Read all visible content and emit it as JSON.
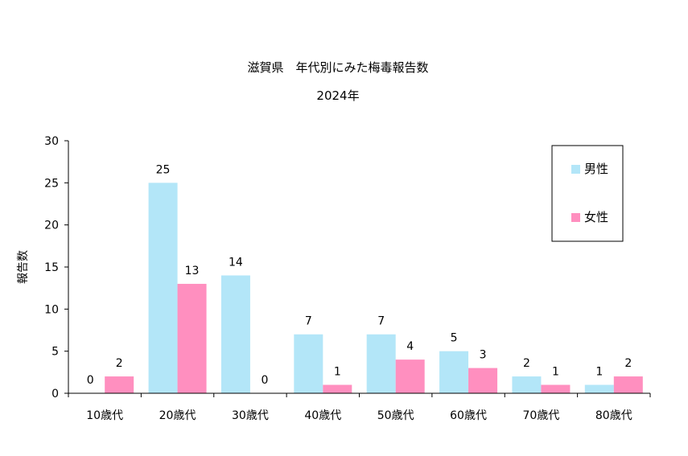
{
  "chart_data": {
    "type": "bar",
    "title": "滋賀県　年代別にみた梅毒報告数",
    "subtitle": "2024年",
    "xlabel": "",
    "ylabel": "報告数",
    "ylim": [
      0,
      30
    ],
    "yticks": [
      0,
      5,
      10,
      15,
      20,
      25,
      30
    ],
    "categories": [
      "10歳代",
      "20歳代",
      "30歳代",
      "40歳代",
      "50歳代",
      "60歳代",
      "70歳代",
      "80歳代"
    ],
    "series": [
      {
        "name": "男性",
        "color": "#b3e6f8",
        "values": [
          0,
          25,
          14,
          7,
          7,
          5,
          2,
          1
        ]
      },
      {
        "name": "女性",
        "color": "#ff8fbf",
        "values": [
          2,
          13,
          0,
          1,
          4,
          3,
          1,
          2
        ]
      }
    ],
    "legend_position": "top-right",
    "grid": false
  }
}
